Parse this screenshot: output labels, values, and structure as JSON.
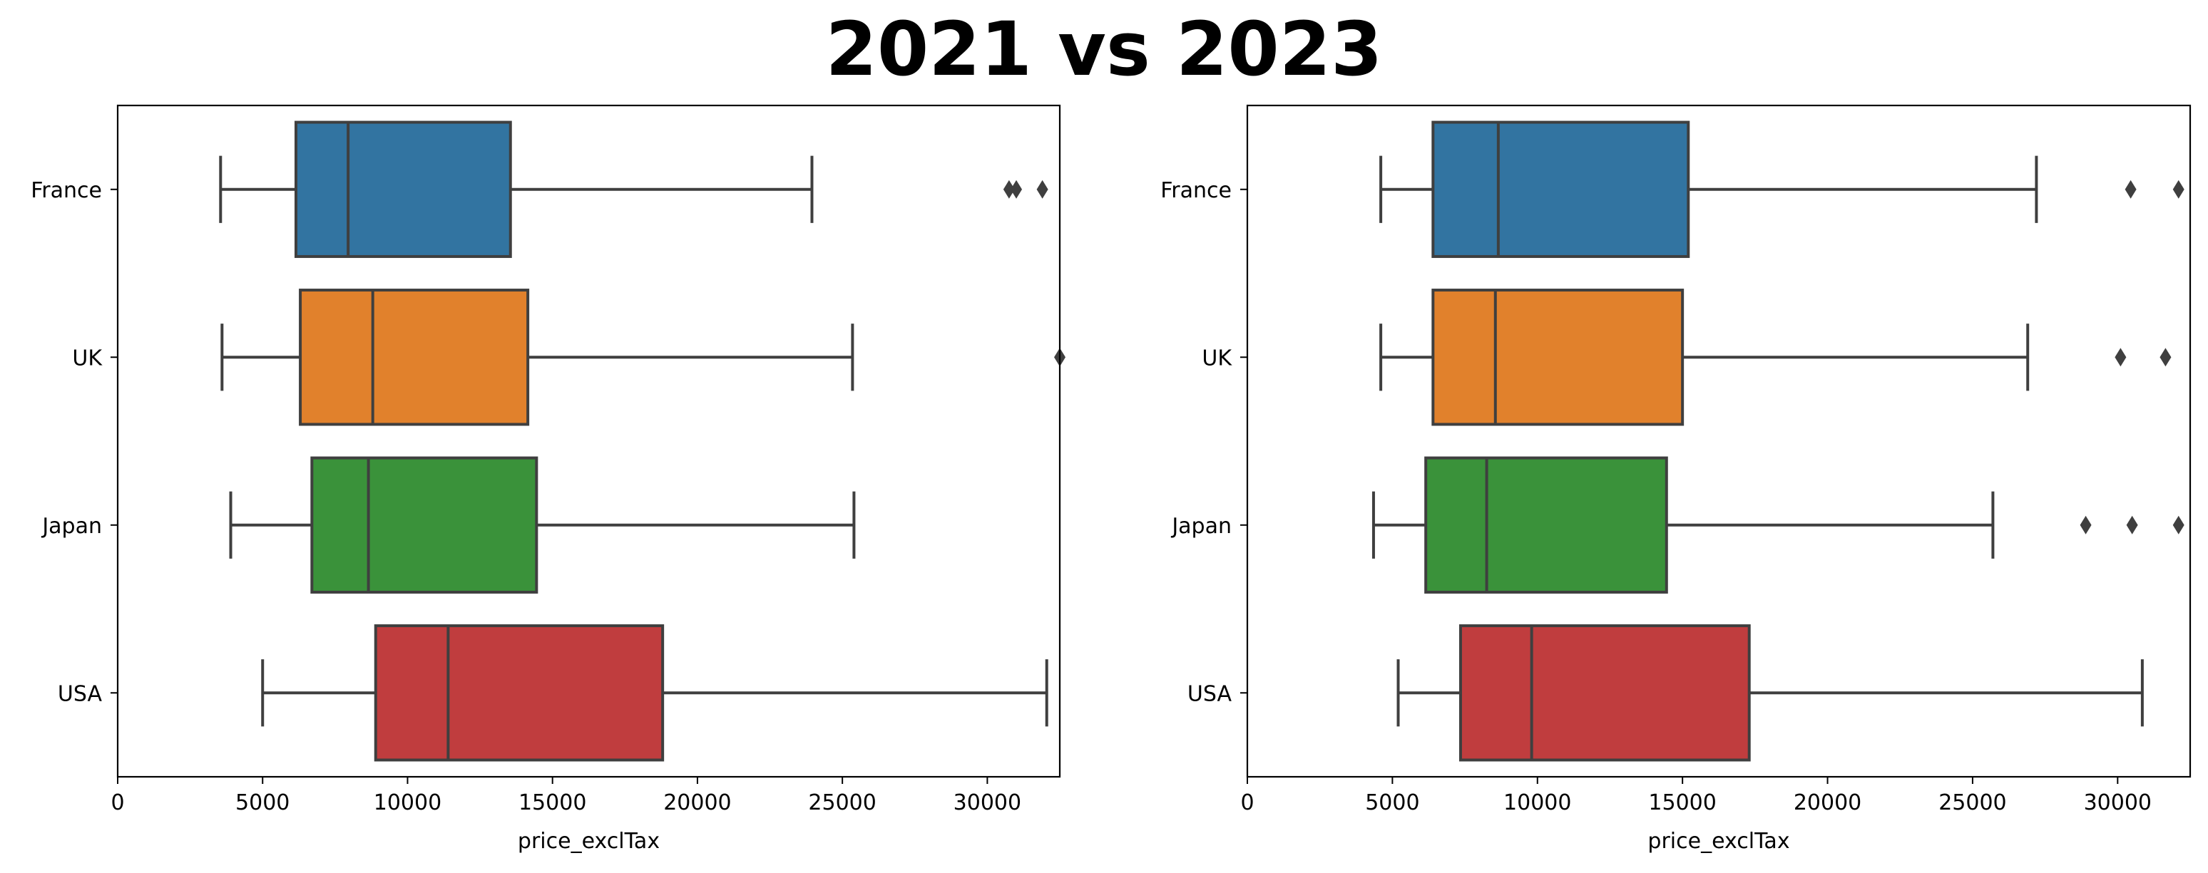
{
  "title": "2021 vs 2023",
  "chart_data": [
    {
      "type": "boxplot",
      "orientation": "horizontal",
      "year": "2021",
      "xlabel": "price_exclTax",
      "ylabel": "",
      "xlim": [
        0,
        32500
      ],
      "xticks": [
        0,
        5000,
        10000,
        15000,
        20000,
        25000,
        30000
      ],
      "categories": [
        "France",
        "UK",
        "Japan",
        "USA"
      ],
      "boxes": [
        {
          "category": "France",
          "color": "#3274a1",
          "whisker_low": 3550,
          "q1": 6150,
          "median": 7950,
          "q3": 13550,
          "whisker_high": 23950,
          "outliers": [
            30750,
            31000,
            31900
          ]
        },
        {
          "category": "UK",
          "color": "#e1812c",
          "whisker_low": 3600,
          "q1": 6300,
          "median": 8800,
          "q3": 14150,
          "whisker_high": 25350,
          "outliers": [
            32500
          ]
        },
        {
          "category": "Japan",
          "color": "#3a923a",
          "whisker_low": 3900,
          "q1": 6700,
          "median": 8650,
          "q3": 14450,
          "whisker_high": 25400,
          "outliers": []
        },
        {
          "category": "USA",
          "color": "#c03d3e",
          "whisker_low": 5000,
          "q1": 8900,
          "median": 11400,
          "q3": 18800,
          "whisker_high": 32050,
          "outliers": []
        }
      ]
    },
    {
      "type": "boxplot",
      "orientation": "horizontal",
      "year": "2023",
      "xlabel": "price_exclTax",
      "ylabel": "",
      "xlim": [
        0,
        32500
      ],
      "xticks": [
        0,
        5000,
        10000,
        15000,
        20000,
        25000,
        30000
      ],
      "categories": [
        "France",
        "UK",
        "Japan",
        "USA"
      ],
      "boxes": [
        {
          "category": "France",
          "color": "#3274a1",
          "whisker_low": 4600,
          "q1": 6400,
          "median": 8650,
          "q3": 15200,
          "whisker_high": 27200,
          "outliers": [
            30450,
            32100
          ]
        },
        {
          "category": "UK",
          "color": "#e1812c",
          "whisker_low": 4600,
          "q1": 6400,
          "median": 8550,
          "q3": 15000,
          "whisker_high": 26900,
          "outliers": [
            30100,
            31650
          ]
        },
        {
          "category": "Japan",
          "color": "#3a923a",
          "whisker_low": 4350,
          "q1": 6150,
          "median": 8250,
          "q3": 14450,
          "whisker_high": 25700,
          "outliers": [
            28900,
            30500,
            32100
          ]
        },
        {
          "category": "USA",
          "color": "#c03d3e",
          "whisker_low": 5200,
          "q1": 7350,
          "median": 9800,
          "q3": 17300,
          "whisker_high": 30850,
          "outliers": []
        }
      ]
    }
  ]
}
